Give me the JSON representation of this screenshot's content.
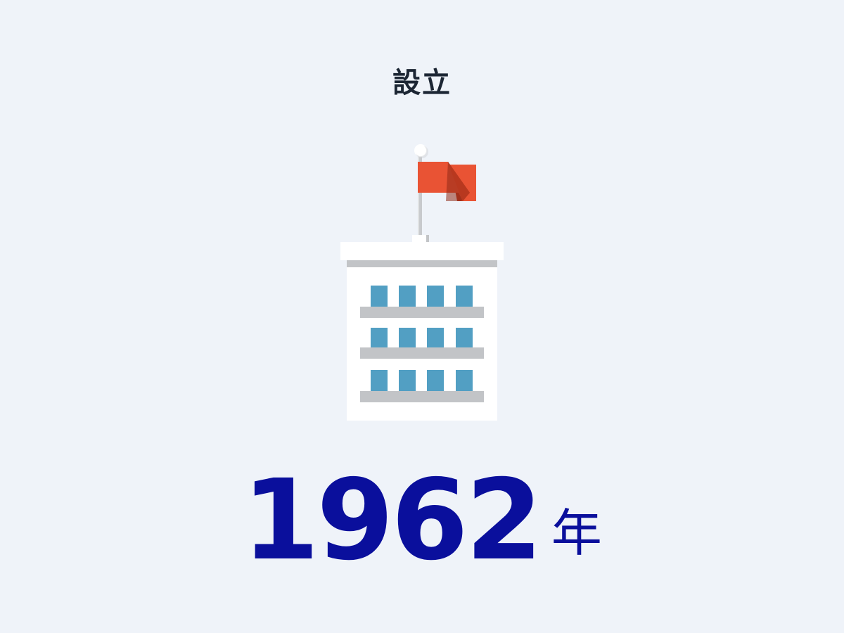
{
  "heading": "設立",
  "year": {
    "number": "1962",
    "unit": "年"
  },
  "illustration": {
    "icon": "building-with-flag-icon",
    "colors": {
      "flag": "#e95334",
      "flag_shadow": "#b8381f",
      "building": "#ffffff",
      "floor_band": "#c2c4c7",
      "window": "#529fc3",
      "pole": "#c8cacd"
    }
  },
  "colors": {
    "background": "#eff3f9",
    "heading": "#1c2634",
    "year": "#0a0f9c"
  }
}
